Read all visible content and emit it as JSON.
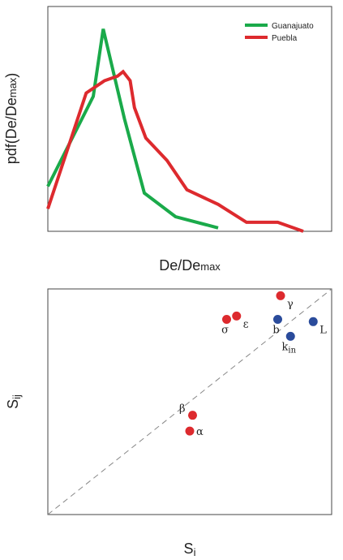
{
  "chart_data": [
    {
      "type": "line",
      "xlabel": "De/De",
      "xlabel_sub": "max",
      "ylabel": "pdf(De/De",
      "ylabel_sub": "max",
      "ylabel_close": ")",
      "xlim": [
        0,
        1
      ],
      "ylim": [
        0,
        1
      ],
      "xticks": [
        "0.0",
        "0.1",
        "0.2",
        "0.3",
        "0.4",
        "0.5",
        "0.6",
        "0.7",
        "0.8",
        "0.9",
        "1.0"
      ],
      "yticks": [
        "0.0",
        "0.1",
        "0.2",
        "0.3",
        "0.4",
        "0.5",
        "0.6",
        "0.7",
        "0.8",
        "0.9",
        "1.0"
      ],
      "grid": false,
      "legend": "top-right",
      "series": [
        {
          "name": "Guanajuato",
          "color": "#1aaa4a",
          "x": [
            0.0,
            0.16,
            0.195,
            0.27,
            0.34,
            0.45,
            0.6
          ],
          "y": [
            0.2,
            0.6,
            0.9,
            0.5,
            0.17,
            0.065,
            0.015
          ]
        },
        {
          "name": "Puebla",
          "color": "#dd2a2e",
          "x": [
            0.0,
            0.135,
            0.2,
            0.245,
            0.265,
            0.29,
            0.305,
            0.345,
            0.42,
            0.49,
            0.6,
            0.7,
            0.81,
            0.9
          ],
          "y": [
            0.1,
            0.615,
            0.67,
            0.69,
            0.71,
            0.67,
            0.55,
            0.415,
            0.315,
            0.185,
            0.12,
            0.04,
            0.04,
            0.0
          ]
        }
      ]
    },
    {
      "type": "scatter",
      "xlabel": "S",
      "xlabel_sub": "i",
      "ylabel": "S",
      "ylabel_sub": "ij",
      "xlim": [
        0,
        1
      ],
      "ylim": [
        0,
        1
      ],
      "xticks": [
        "0.0",
        "0.1",
        "0.2",
        "0.3",
        "0.4",
        "0.5",
        "0.6",
        "0.7",
        "0.8",
        "0.9",
        "1.0"
      ],
      "yticks": [
        "0.0",
        "0.1",
        "0.2",
        "0.3",
        "0.4",
        "0.5",
        "0.6",
        "0.7",
        "0.8",
        "0.9",
        "1.0"
      ],
      "grid": false,
      "diagonal": "dashed y = x",
      "points": [
        {
          "label": "σ",
          "x": 0.63,
          "y": 0.865,
          "color": "#dd2a2e",
          "label_pos": "below"
        },
        {
          "label": "ε",
          "x": 0.665,
          "y": 0.88,
          "color": "#dd2a2e",
          "label_pos": "below-right"
        },
        {
          "label": "γ",
          "x": 0.82,
          "y": 0.97,
          "color": "#dd2a2e",
          "label_pos": "below-right"
        },
        {
          "label": "β",
          "x": 0.51,
          "y": 0.44,
          "color": "#dd2a2e",
          "label_pos": "above-left"
        },
        {
          "label": "α",
          "x": 0.5,
          "y": 0.37,
          "color": "#dd2a2e",
          "label_pos": "right"
        },
        {
          "label": "b",
          "x": 0.81,
          "y": 0.865,
          "color": "#2a4b9b",
          "label_pos": "below"
        },
        {
          "label": "k",
          "label_sub": "in",
          "x": 0.855,
          "y": 0.79,
          "color": "#2a4b9b",
          "label_pos": "below"
        },
        {
          "label": "L",
          "x": 0.935,
          "y": 0.855,
          "color": "#2a4b9b",
          "label_pos": "below-right"
        }
      ]
    }
  ]
}
